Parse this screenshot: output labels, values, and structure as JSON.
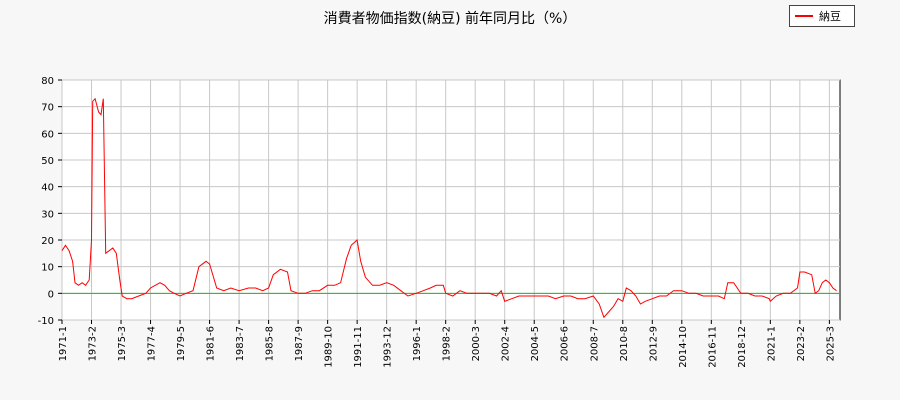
{
  "title": "消費者物価指数(納豆) 前年同月比（%）",
  "legend": {
    "label": "納豆",
    "color": "#ff0000"
  },
  "colors": {
    "line": "#ff0000",
    "zero_line": "#00cc00",
    "grid": "#c8c8c8",
    "plot_bg": "#ffffff",
    "page_bg": "#f7f7f7"
  },
  "chart_data": {
    "type": "line",
    "title": "消費者物価指数(納豆) 前年同月比（%）",
    "xlabel": "",
    "ylabel": "",
    "ylim": [
      -10,
      80
    ],
    "yticks": [
      -10,
      0,
      10,
      20,
      30,
      40,
      50,
      60,
      70,
      80
    ],
    "xlim": [
      "1971-01",
      "2025-12"
    ],
    "xticks": [
      "1971-1",
      "1973-2",
      "1975-3",
      "1977-4",
      "1979-5",
      "1981-6",
      "1983-7",
      "1985-8",
      "1987-9",
      "1989-10",
      "1991-11",
      "1993-12",
      "1996-1",
      "1998-2",
      "2000-3",
      "2002-4",
      "2004-5",
      "2006-6",
      "2008-7",
      "2010-8",
      "2012-9",
      "2014-10",
      "2016-11",
      "2018-12",
      "2021-1",
      "2023-2",
      "2025-3"
    ],
    "grid": true,
    "legend_position": "top-right",
    "series": [
      {
        "name": "納豆",
        "color": "#ff0000",
        "points": [
          [
            "1971-01",
            16
          ],
          [
            "1971-04",
            18
          ],
          [
            "1971-07",
            16
          ],
          [
            "1971-10",
            12
          ],
          [
            "1971-12",
            4
          ],
          [
            "1972-03",
            3
          ],
          [
            "1972-06",
            4
          ],
          [
            "1972-09",
            3
          ],
          [
            "1972-12",
            5
          ],
          [
            "1973-02",
            20
          ],
          [
            "1973-03",
            72
          ],
          [
            "1973-05",
            73
          ],
          [
            "1973-08",
            68
          ],
          [
            "1973-10",
            67
          ],
          [
            "1973-12",
            73
          ],
          [
            "1974-02",
            15
          ],
          [
            "1974-05",
            16
          ],
          [
            "1974-08",
            17
          ],
          [
            "1974-11",
            15
          ],
          [
            "1975-02",
            5
          ],
          [
            "1975-04",
            -1
          ],
          [
            "1975-08",
            -2
          ],
          [
            "1975-12",
            -2
          ],
          [
            "1976-06",
            -1
          ],
          [
            "1976-12",
            0
          ],
          [
            "1977-04",
            2
          ],
          [
            "1977-08",
            3
          ],
          [
            "1977-12",
            4
          ],
          [
            "1978-04",
            3
          ],
          [
            "1978-08",
            1
          ],
          [
            "1978-12",
            0
          ],
          [
            "1979-05",
            -1
          ],
          [
            "1979-10",
            0
          ],
          [
            "1980-04",
            1
          ],
          [
            "1980-09",
            10
          ],
          [
            "1981-03",
            12
          ],
          [
            "1981-06",
            11
          ],
          [
            "1981-12",
            2
          ],
          [
            "1982-06",
            1
          ],
          [
            "1982-12",
            2
          ],
          [
            "1983-07",
            1
          ],
          [
            "1984-03",
            2
          ],
          [
            "1984-09",
            2
          ],
          [
            "1985-03",
            1
          ],
          [
            "1985-08",
            2
          ],
          [
            "1985-12",
            7
          ],
          [
            "1986-06",
            9
          ],
          [
            "1986-12",
            8
          ],
          [
            "1987-03",
            1
          ],
          [
            "1987-09",
            0
          ],
          [
            "1988-03",
            0
          ],
          [
            "1988-09",
            1
          ],
          [
            "1989-03",
            1
          ],
          [
            "1989-10",
            3
          ],
          [
            "1990-04",
            3
          ],
          [
            "1990-09",
            4
          ],
          [
            "1991-02",
            13
          ],
          [
            "1991-06",
            18
          ],
          [
            "1991-11",
            20
          ],
          [
            "1992-02",
            12
          ],
          [
            "1992-06",
            6
          ],
          [
            "1992-12",
            3
          ],
          [
            "1993-06",
            3
          ],
          [
            "1993-12",
            4
          ],
          [
            "1994-06",
            3
          ],
          [
            "1994-12",
            1
          ],
          [
            "1995-06",
            -1
          ],
          [
            "1996-01",
            0
          ],
          [
            "1996-07",
            1
          ],
          [
            "1997-01",
            2
          ],
          [
            "1997-06",
            3
          ],
          [
            "1997-12",
            3
          ],
          [
            "1998-02",
            0
          ],
          [
            "1998-08",
            -1
          ],
          [
            "1999-02",
            1
          ],
          [
            "1999-08",
            0
          ],
          [
            "2000-03",
            0
          ],
          [
            "2000-09",
            0
          ],
          [
            "2001-03",
            0
          ],
          [
            "2001-09",
            -1
          ],
          [
            "2002-01",
            1
          ],
          [
            "2002-04",
            -3
          ],
          [
            "2002-10",
            -2
          ],
          [
            "2003-04",
            -1
          ],
          [
            "2003-10",
            -1
          ],
          [
            "2004-05",
            -1
          ],
          [
            "2004-11",
            -1
          ],
          [
            "2005-05",
            -1
          ],
          [
            "2005-11",
            -2
          ],
          [
            "2006-06",
            -1
          ],
          [
            "2006-12",
            -1
          ],
          [
            "2007-06",
            -2
          ],
          [
            "2007-12",
            -2
          ],
          [
            "2008-07",
            -1
          ],
          [
            "2008-12",
            -4
          ],
          [
            "2009-04",
            -9
          ],
          [
            "2009-08",
            -7
          ],
          [
            "2009-12",
            -5
          ],
          [
            "2010-04",
            -2
          ],
          [
            "2010-08",
            -3
          ],
          [
            "2010-11",
            2
          ],
          [
            "2011-03",
            1
          ],
          [
            "2011-07",
            -1
          ],
          [
            "2011-11",
            -4
          ],
          [
            "2012-03",
            -3
          ],
          [
            "2012-09",
            -2
          ],
          [
            "2013-03",
            -1
          ],
          [
            "2013-09",
            -1
          ],
          [
            "2014-03",
            1
          ],
          [
            "2014-10",
            1
          ],
          [
            "2015-04",
            0
          ],
          [
            "2015-10",
            0
          ],
          [
            "2016-04",
            -1
          ],
          [
            "2016-11",
            -1
          ],
          [
            "2017-05",
            -1
          ],
          [
            "2017-10",
            -2
          ],
          [
            "2018-01",
            4
          ],
          [
            "2018-06",
            4
          ],
          [
            "2018-12",
            0
          ],
          [
            "2019-06",
            0
          ],
          [
            "2019-12",
            -1
          ],
          [
            "2020-06",
            -1
          ],
          [
            "2020-12",
            -2
          ],
          [
            "2021-01",
            -3
          ],
          [
            "2021-06",
            -1
          ],
          [
            "2021-12",
            0
          ],
          [
            "2022-06",
            0
          ],
          [
            "2022-12",
            2
          ],
          [
            "2023-02",
            8
          ],
          [
            "2023-06",
            8
          ],
          [
            "2023-12",
            7
          ],
          [
            "2024-03",
            0
          ],
          [
            "2024-06",
            1
          ],
          [
            "2024-09",
            4
          ],
          [
            "2024-12",
            5
          ],
          [
            "2025-03",
            4
          ],
          [
            "2025-06",
            2
          ],
          [
            "2025-09",
            1
          ]
        ]
      }
    ]
  }
}
